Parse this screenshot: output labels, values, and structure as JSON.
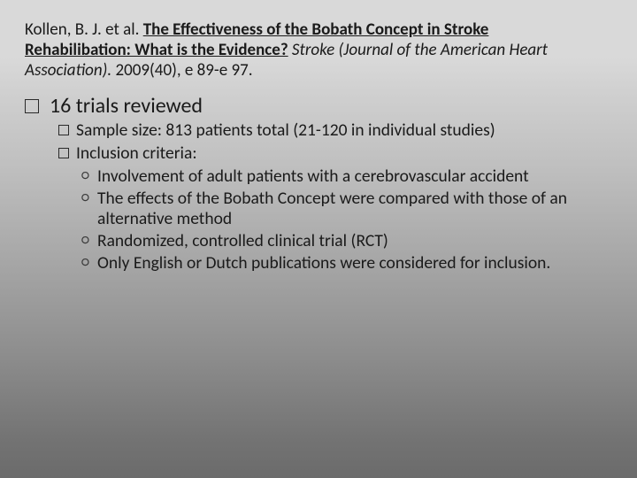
{
  "citation": {
    "author": "Kollen, B. J. et al. ",
    "title": "The Effectiveness of the Bobath Concept in Stroke Rehabilibation: What is the Evidence?",
    "journal": " Stroke (Journal of the American Heart Association).",
    "pub": " 2009(40), e 89-e 97."
  },
  "main_bullet": "16 trials reviewed",
  "sub_bullets": [
    {
      "text": "Sample size: 813 patients total (21-120 in individual studies)"
    },
    {
      "text": "Inclusion criteria:"
    }
  ],
  "criteria": [
    "Involvement of adult patients with a cerebrovascular accident",
    "The effects of the Bobath Concept were compared with those of an alternative method",
    "Randomized, controlled clinical trial (RCT)",
    "Only English or Dutch publications were considered for inclusion."
  ],
  "colors": {
    "text": "#1a1a1a",
    "bg_top": "#d9d9d9",
    "bg_bottom": "#6b6b6b"
  }
}
